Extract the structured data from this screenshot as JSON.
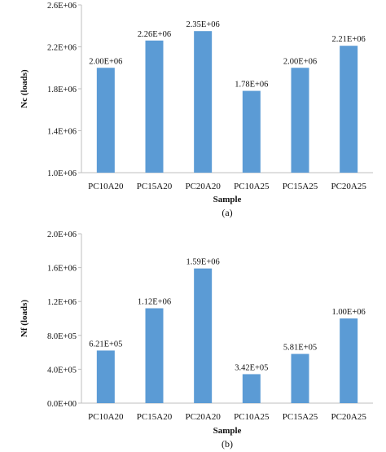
{
  "colors": {
    "bar": "#5b9bd5",
    "axis": "#bfbfbf"
  },
  "chart_data": [
    {
      "type": "bar",
      "title": "",
      "xlabel": "Sample",
      "ylabel": "Nc (loads)",
      "caption": "(a)",
      "categories": [
        "PC10A20",
        "PC15A20",
        "PC20A20",
        "PC10A25",
        "PC15A25",
        "PC20A25"
      ],
      "values": [
        2000000,
        2260000,
        2350000,
        1780000,
        2000000,
        2210000
      ],
      "data_labels": [
        "2.00E+06",
        "2.26E+06",
        "2.35E+06",
        "1.78E+06",
        "2.00E+06",
        "2.21E+06"
      ],
      "ylim": [
        1000000,
        2600000
      ],
      "yticks": [
        1000000,
        1400000,
        1800000,
        2200000,
        2600000
      ],
      "ytick_labels": [
        "1.0E+06",
        "1.4E+06",
        "1.8E+06",
        "2.2E+06",
        "2.6E+06"
      ],
      "grid": false,
      "legend": "none"
    },
    {
      "type": "bar",
      "title": "",
      "xlabel": "Sample",
      "ylabel": "Nf (loads)",
      "caption": "(b)",
      "categories": [
        "PC10A20",
        "PC15A20",
        "PC20A20",
        "PC10A25",
        "PC15A25",
        "PC20A25"
      ],
      "values": [
        621000,
        1120000,
        1590000,
        342000,
        581000,
        1000000
      ],
      "data_labels": [
        "6.21E+05",
        "1.12E+06",
        "1.59E+06",
        "3.42E+05",
        "5.81E+05",
        "1.00E+06"
      ],
      "ylim": [
        0,
        2000000
      ],
      "yticks": [
        0,
        400000,
        800000,
        1200000,
        1600000,
        2000000
      ],
      "ytick_labels": [
        "0.0E+00",
        "4.0E+05",
        "8.0E+05",
        "1.2E+06",
        "1.6E+06",
        "2.0E+06"
      ],
      "grid": false,
      "legend": "none"
    }
  ]
}
